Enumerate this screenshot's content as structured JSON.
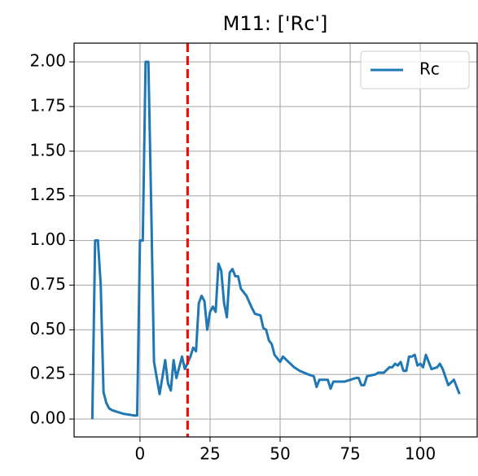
{
  "chart_data": {
    "type": "line",
    "title": "M11: ['Rc']",
    "x": [
      -17,
      -16,
      -15,
      -14,
      -13,
      -12,
      -11,
      -10,
      -8,
      -6,
      -4,
      -2,
      -1,
      0,
      1,
      2,
      3,
      4,
      5,
      7,
      9,
      10,
      11,
      12,
      13,
      15,
      16,
      18,
      19,
      20,
      21,
      22,
      23,
      24,
      25,
      26,
      27,
      28,
      29,
      30,
      31,
      32,
      33,
      34,
      35,
      36,
      38,
      40,
      41,
      43,
      44,
      45,
      46,
      47,
      48,
      50,
      51,
      53,
      55,
      57,
      60,
      62,
      63,
      64,
      67,
      68,
      69,
      73,
      75,
      77,
      78,
      79,
      80,
      81,
      84,
      85,
      87,
      89,
      90,
      91,
      92,
      93,
      94,
      95,
      96,
      97,
      98,
      99,
      100,
      101,
      102,
      103,
      104,
      106,
      107,
      108,
      110,
      112,
      114
    ],
    "series": [
      {
        "name": "Rc",
        "color": "#1f77b4",
        "values": [
          0.0,
          1.0,
          1.0,
          0.75,
          0.15,
          0.09,
          0.06,
          0.05,
          0.04,
          0.03,
          0.025,
          0.02,
          0.02,
          1.0,
          1.0,
          2.0,
          2.0,
          1.2,
          0.32,
          0.14,
          0.33,
          0.2,
          0.16,
          0.33,
          0.23,
          0.35,
          0.28,
          0.35,
          0.4,
          0.38,
          0.65,
          0.69,
          0.66,
          0.5,
          0.6,
          0.63,
          0.6,
          0.87,
          0.83,
          0.65,
          0.57,
          0.82,
          0.84,
          0.8,
          0.8,
          0.73,
          0.69,
          0.62,
          0.59,
          0.58,
          0.51,
          0.5,
          0.44,
          0.42,
          0.36,
          0.32,
          0.35,
          0.32,
          0.29,
          0.27,
          0.25,
          0.24,
          0.18,
          0.22,
          0.22,
          0.17,
          0.21,
          0.21,
          0.22,
          0.23,
          0.23,
          0.19,
          0.19,
          0.24,
          0.25,
          0.26,
          0.26,
          0.29,
          0.29,
          0.31,
          0.3,
          0.32,
          0.27,
          0.27,
          0.35,
          0.35,
          0.36,
          0.3,
          0.31,
          0.29,
          0.36,
          0.32,
          0.28,
          0.29,
          0.31,
          0.28,
          0.19,
          0.22,
          0.14
        ]
      }
    ],
    "vline": {
      "x": 17,
      "color": "#ff0000"
    },
    "xlim": [
      -23.5,
      120.3
    ],
    "xticks": [
      0,
      25,
      50,
      75,
      100
    ],
    "ylim": [
      -0.1,
      2.105
    ],
    "yticks": [
      {
        "value": 0,
        "label": "0.00"
      },
      {
        "value": 0.25,
        "label": "0.25"
      },
      {
        "value": 0.5,
        "label": "0.50"
      },
      {
        "value": 0.75,
        "label": "0.75"
      },
      {
        "value": 1,
        "label": "1.00"
      },
      {
        "value": 1.25,
        "label": "1.25"
      },
      {
        "value": 1.5,
        "label": "1.50"
      },
      {
        "value": 1.75,
        "label": "1.75"
      },
      {
        "value": 2,
        "label": "2.00"
      }
    ],
    "grid": true,
    "legend": "upper right"
  }
}
